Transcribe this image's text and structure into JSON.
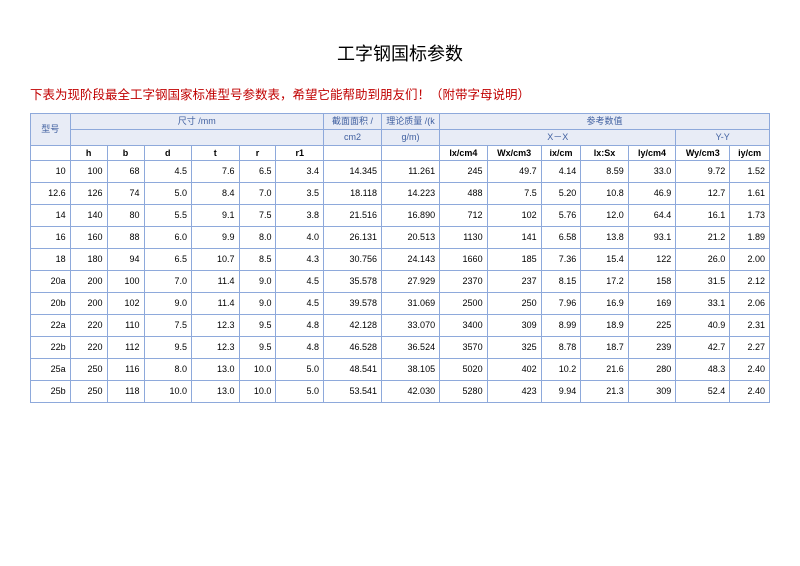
{
  "title": "工字钢国标参数",
  "subtitle": "下表为现阶段最全工字钢国家标准型号参数表，希望它能帮助到朋友们！（附带字母说明）",
  "headers": {
    "model": "型号",
    "dim": "尺寸 /mm",
    "area": "截面面积 /",
    "area2": "cm2",
    "mass": "理论质量 /(k",
    "mass2": "g/m)",
    "ref": "参考数值",
    "xx": "X－X",
    "yy": "Y-Y",
    "h": "h",
    "b": "b",
    "d": "d",
    "t": "t",
    "r": "r",
    "r1": "r1",
    "lxcm4": "lx/cm4",
    "wxcm3": "Wx/cm3",
    "ixcm": "ix/cm",
    "lxsx": "lx:Sx",
    "lycm4": "ly/cm4",
    "wycm3": "Wy/cm3",
    "iycm": "iy/cm"
  },
  "rows": [
    {
      "m": "10",
      "h": "100",
      "b": "68",
      "d": "4.5",
      "t": "7.6",
      "r": "6.5",
      "r1": "3.4",
      "area": "14.345",
      "mass": "11.261",
      "lx": "245",
      "wx": "49.7",
      "ix": "4.14",
      "lxsx": "8.59",
      "ly": "33.0",
      "wy": "9.72",
      "iy": "1.52"
    },
    {
      "m": "12.6",
      "h": "126",
      "b": "74",
      "d": "5.0",
      "t": "8.4",
      "r": "7.0",
      "r1": "3.5",
      "area": "18.118",
      "mass": "14.223",
      "lx": "488",
      "wx": "7.5",
      "ix": "5.20",
      "lxsx": "10.8",
      "ly": "46.9",
      "wy": "12.7",
      "iy": "1.61"
    },
    {
      "m": "14",
      "h": "140",
      "b": "80",
      "d": "5.5",
      "t": "9.1",
      "r": "7.5",
      "r1": "3.8",
      "area": "21.516",
      "mass": "16.890",
      "lx": "712",
      "wx": "102",
      "ix": "5.76",
      "lxsx": "12.0",
      "ly": "64.4",
      "wy": "16.1",
      "iy": "1.73"
    },
    {
      "m": "16",
      "h": "160",
      "b": "88",
      "d": "6.0",
      "t": "9.9",
      "r": "8.0",
      "r1": "4.0",
      "area": "26.131",
      "mass": "20.513",
      "lx": "1130",
      "wx": "141",
      "ix": "6.58",
      "lxsx": "13.8",
      "ly": "93.1",
      "wy": "21.2",
      "iy": "1.89"
    },
    {
      "m": "18",
      "h": "180",
      "b": "94",
      "d": "6.5",
      "t": "10.7",
      "r": "8.5",
      "r1": "4.3",
      "area": "30.756",
      "mass": "24.143",
      "lx": "1660",
      "wx": "185",
      "ix": "7.36",
      "lxsx": "15.4",
      "ly": "122",
      "wy": "26.0",
      "iy": "2.00"
    },
    {
      "m": "20a",
      "h": "200",
      "b": "100",
      "d": "7.0",
      "t": "11.4",
      "r": "9.0",
      "r1": "4.5",
      "area": "35.578",
      "mass": "27.929",
      "lx": "2370",
      "wx": "237",
      "ix": "8.15",
      "lxsx": "17.2",
      "ly": "158",
      "wy": "31.5",
      "iy": "2.12"
    },
    {
      "m": "20b",
      "h": "200",
      "b": "102",
      "d": "9.0",
      "t": "11.4",
      "r": "9.0",
      "r1": "4.5",
      "area": "39.578",
      "mass": "31.069",
      "lx": "2500",
      "wx": "250",
      "ix": "7.96",
      "lxsx": "16.9",
      "ly": "169",
      "wy": "33.1",
      "iy": "2.06"
    },
    {
      "m": "22a",
      "h": "220",
      "b": "110",
      "d": "7.5",
      "t": "12.3",
      "r": "9.5",
      "r1": "4.8",
      "area": "42.128",
      "mass": "33.070",
      "lx": "3400",
      "wx": "309",
      "ix": "8.99",
      "lxsx": "18.9",
      "ly": "225",
      "wy": "40.9",
      "iy": "2.31"
    },
    {
      "m": "22b",
      "h": "220",
      "b": "112",
      "d": "9.5",
      "t": "12.3",
      "r": "9.5",
      "r1": "4.8",
      "area": "46.528",
      "mass": "36.524",
      "lx": "3570",
      "wx": "325",
      "ix": "8.78",
      "lxsx": "18.7",
      "ly": "239",
      "wy": "42.7",
      "iy": "2.27"
    },
    {
      "m": "25a",
      "h": "250",
      "b": "116",
      "d": "8.0",
      "t": "13.0",
      "r": "10.0",
      "r1": "5.0",
      "area": "48.541",
      "mass": "38.105",
      "lx": "5020",
      "wx": "402",
      "ix": "10.2",
      "lxsx": "21.6",
      "ly": "280",
      "wy": "48.3",
      "iy": "2.40"
    },
    {
      "m": "25b",
      "h": "250",
      "b": "118",
      "d": "10.0",
      "t": "13.0",
      "r": "10.0",
      "r1": "5.0",
      "area": "53.541",
      "mass": "42.030",
      "lx": "5280",
      "wx": "423",
      "ix": "9.94",
      "lxsx": "21.3",
      "ly": "309",
      "wy": "52.4",
      "iy": "2.40"
    }
  ]
}
